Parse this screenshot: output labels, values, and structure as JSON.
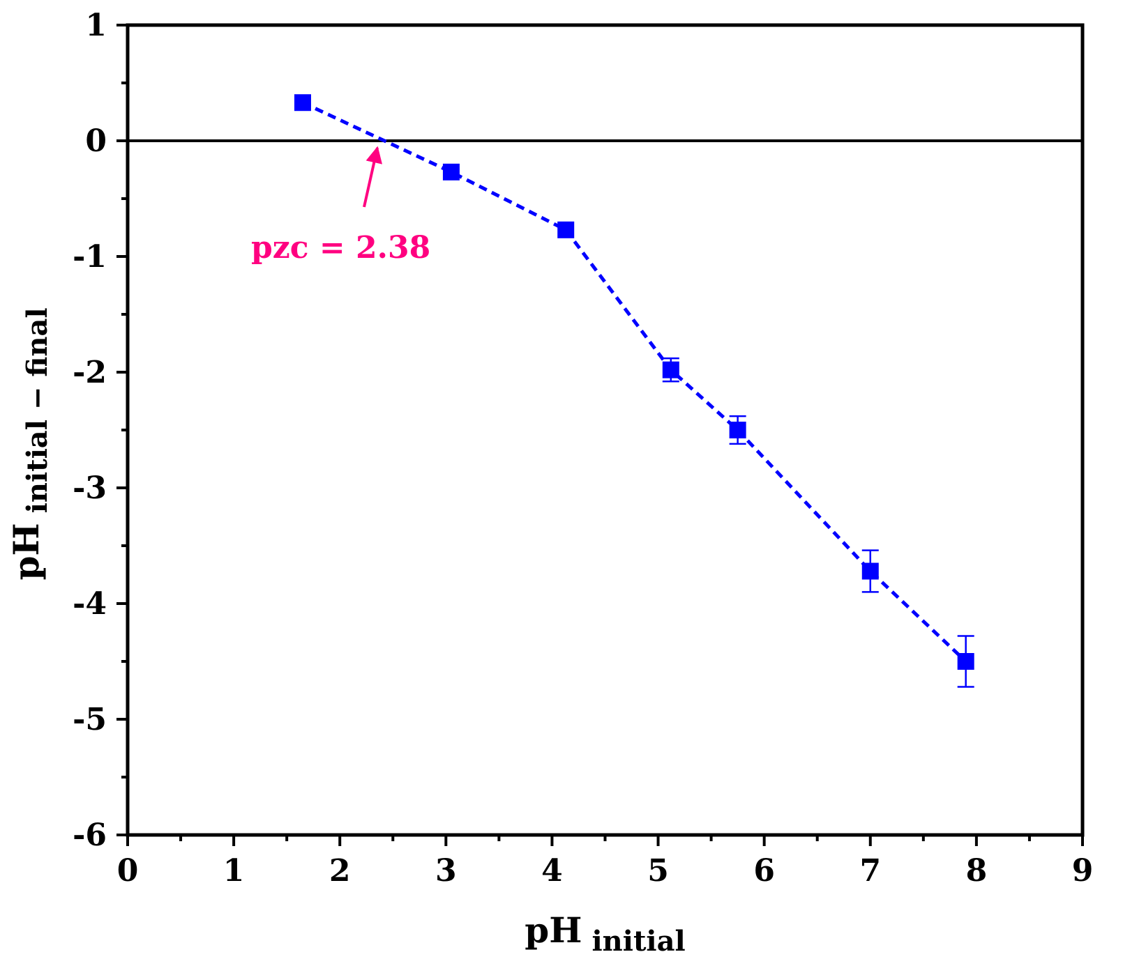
{
  "chart_data": {
    "type": "scatter",
    "title": "",
    "xlabel": "pH",
    "xlabel_subscript": "initial",
    "ylabel": "pH",
    "ylabel_subscript": "initial − final",
    "xlim": [
      0,
      9
    ],
    "ylim": [
      -6,
      1
    ],
    "xticks": [
      0,
      1,
      2,
      3,
      4,
      5,
      6,
      7,
      8,
      9
    ],
    "yticks": [
      1,
      0,
      -1,
      -2,
      -3,
      -4,
      -5,
      -6
    ],
    "xtick_labels": [
      "0",
      "1",
      "2",
      "3",
      "4",
      "5",
      "6",
      "7",
      "8",
      "9"
    ],
    "ytick_labels": [
      "1",
      "0",
      "-1",
      "-2",
      "-3",
      "-4",
      "-5",
      "-6"
    ],
    "reference_line_y": 0,
    "series": [
      {
        "name": "pH initial − final",
        "color": "#0000ff",
        "marker": "square",
        "line_style": "dashed",
        "x": [
          1.65,
          3.05,
          4.13,
          5.12,
          5.75,
          7.0,
          7.9
        ],
        "y": [
          0.33,
          -0.27,
          -0.77,
          -1.98,
          -2.5,
          -3.72,
          -4.5
        ],
        "error": [
          0.03,
          0.03,
          0.03,
          0.1,
          0.12,
          0.18,
          0.22
        ]
      }
    ],
    "annotation": {
      "text": "pzc = 2.38",
      "color": "#ff0080",
      "target_x": 2.38,
      "target_y": 0
    }
  }
}
